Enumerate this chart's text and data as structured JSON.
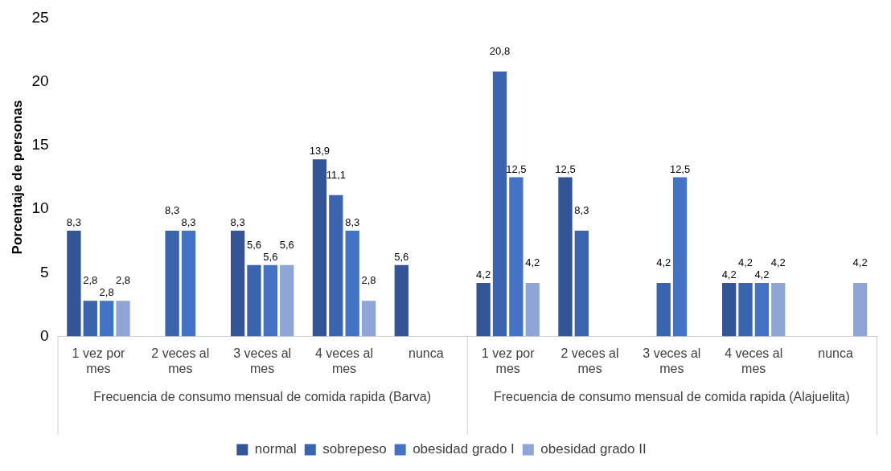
{
  "chart_data": {
    "type": "bar",
    "ylabel": "Porcentaje de personas",
    "categories": [
      "1 vez por mes",
      "2 veces al mes",
      "3 veces al mes",
      "4 veces al mes",
      "nunca",
      "1 vez por mes",
      "2 veces al mes",
      "3 veces al mes",
      "4 veces al mes",
      "nunca"
    ],
    "series": [
      {
        "name": "normal",
        "color": "#335495",
        "values": [
          8.3,
          null,
          8.3,
          13.9,
          5.6,
          4.2,
          12.5,
          null,
          4.2,
          null
        ],
        "value_labels": [
          "8,3",
          null,
          "8,3",
          "13,9",
          "5,6",
          "4,2",
          "12,5",
          null,
          "4,2",
          null
        ]
      },
      {
        "name": "sobrepeso",
        "color": "#3a64ad",
        "values": [
          2.8,
          8.3,
          5.6,
          11.1,
          null,
          20.8,
          8.3,
          4.2,
          4.2,
          null
        ],
        "value_labels": [
          "2,8",
          "8,3",
          "5,6",
          "11,1",
          null,
          "20,8",
          "8,3",
          "4,2",
          "4,2",
          null
        ]
      },
      {
        "name": "obesidad grado I",
        "color": "#4472c4",
        "values": [
          2.8,
          8.3,
          5.6,
          8.3,
          null,
          12.5,
          null,
          12.5,
          4.2,
          null
        ],
        "value_labels": [
          "2,8",
          "8,3",
          "5,6",
          "8,3",
          null,
          "12,5",
          null,
          "12,5",
          "4,2",
          null
        ]
      },
      {
        "name": "obesidad grado II",
        "color": "#8fa5d6",
        "values": [
          2.8,
          null,
          5.6,
          2.8,
          null,
          4.2,
          null,
          null,
          4.2,
          4.2
        ],
        "value_labels": [
          "2,8",
          null,
          "5,6",
          "2,8",
          null,
          "4,2",
          null,
          null,
          "4,2",
          "4,2"
        ]
      }
    ],
    "ylim": [
      0,
      25
    ],
    "yticks": [
      0,
      5,
      10,
      15,
      20,
      25
    ],
    "grid": false,
    "legend": "bottom",
    "annotations": [
      "Frecuencia de consumo mensual de comida rapida (Barva)",
      "Frecuencia de consumo mensual de comida rapida (Alajuelita)"
    ]
  }
}
